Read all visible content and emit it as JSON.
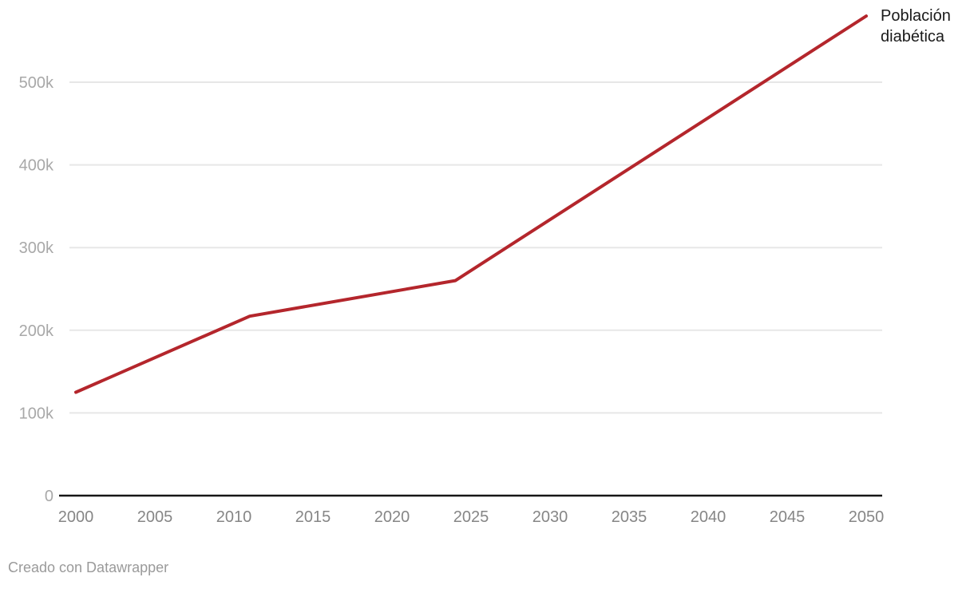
{
  "annotation": {
    "line1": "Población",
    "line2": "diabética"
  },
  "footer": {
    "text": "Creado con Datawrapper"
  },
  "colors": {
    "line": "#b4262c",
    "grid": "#e7e7e7",
    "axis": "#161616",
    "y_label": "#a8a8a8",
    "x_label": "#868686",
    "annotation": "#1a1a1a",
    "footer": "#9a9a9a",
    "background": "#ffffff"
  },
  "chart_data": {
    "type": "line",
    "title": "",
    "xlabel": "",
    "ylabel": "",
    "xlim": [
      2000,
      2050
    ],
    "ylim": [
      0,
      600000
    ],
    "grid": "horizontal",
    "legend_position": "end-of-line-label",
    "series": [
      {
        "name": "Población diabética",
        "points": [
          {
            "x": 2000,
            "y": 125000
          },
          {
            "x": 2011,
            "y": 217000
          },
          {
            "x": 2024,
            "y": 260000
          },
          {
            "x": 2050,
            "y": 580000
          }
        ]
      }
    ],
    "x_ticks": [
      {
        "value": 2000,
        "label": "2000"
      },
      {
        "value": 2005,
        "label": "2005"
      },
      {
        "value": 2010,
        "label": "2010"
      },
      {
        "value": 2015,
        "label": "2015"
      },
      {
        "value": 2020,
        "label": "2020"
      },
      {
        "value": 2025,
        "label": "2025"
      },
      {
        "value": 2030,
        "label": "2030"
      },
      {
        "value": 2035,
        "label": "2035"
      },
      {
        "value": 2040,
        "label": "2040"
      },
      {
        "value": 2045,
        "label": "2045"
      },
      {
        "value": 2050,
        "label": "2050"
      }
    ],
    "y_ticks": [
      {
        "value": 0,
        "label": "0"
      },
      {
        "value": 100000,
        "label": "100k"
      },
      {
        "value": 200000,
        "label": "200k"
      },
      {
        "value": 300000,
        "label": "300k"
      },
      {
        "value": 400000,
        "label": "400k"
      },
      {
        "value": 500000,
        "label": "500k"
      }
    ]
  }
}
